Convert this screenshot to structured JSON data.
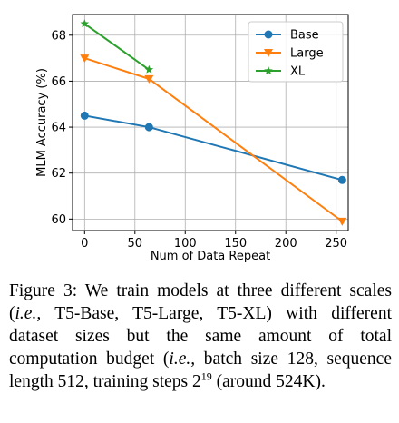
{
  "chart_data": {
    "type": "line",
    "xlabel": "Num of Data Repeat",
    "ylabel": "MLM Accuracy (%)",
    "xlim": [
      -12,
      262
    ],
    "ylim": [
      59.5,
      68.9
    ],
    "xticks": [
      0,
      50,
      100,
      150,
      200,
      250
    ],
    "yticks": [
      60,
      62,
      64,
      66,
      68
    ],
    "grid": true,
    "legend_position": "top-right",
    "series": [
      {
        "name": "Base",
        "color": "#1f77b4",
        "marker": "circle",
        "x": [
          0,
          64,
          256
        ],
        "y": [
          64.5,
          64.0,
          61.7
        ]
      },
      {
        "name": "Large",
        "color": "#ff7f0e",
        "marker": "triangle-down",
        "x": [
          0,
          64,
          256
        ],
        "y": [
          67.0,
          66.1,
          59.9
        ]
      },
      {
        "name": "XL",
        "color": "#2ca02c",
        "marker": "star",
        "x": [
          0,
          64
        ],
        "y": [
          68.5,
          66.5
        ]
      }
    ]
  },
  "caption": {
    "prefix": "Figure 3: We train models at three different scales (",
    "ie1": "i.e.,",
    "mid1": " T5-Base, T5-Large, T5-XL) with different dataset sizes but the same amount of total computation budget (",
    "ie2": "i.e.,",
    "mid2": " batch size 128, sequence length 512, training steps 2",
    "exponent": "19",
    "suffix": " (around 524K)."
  }
}
